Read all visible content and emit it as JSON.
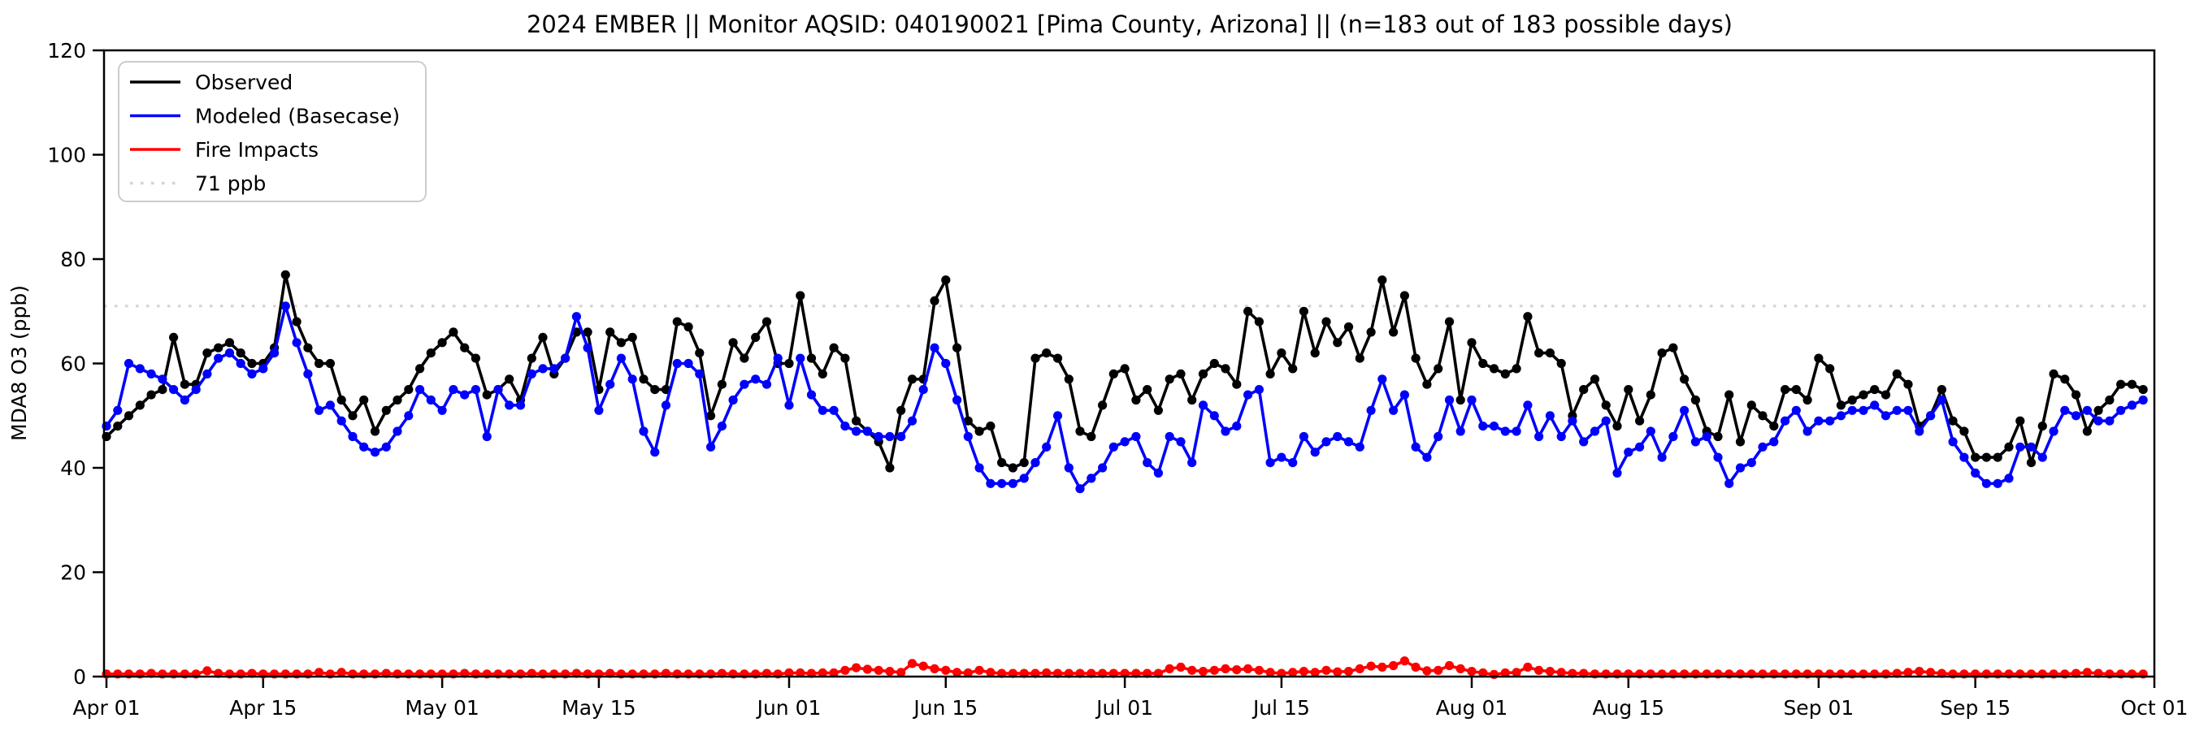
{
  "chart": {
    "title": "2024 EMBER || Monitor AQSID: 040190021 [Pima County, Arizona] || (n=183 out of 183 possible days)"
  },
  "chart_data": {
    "type": "line",
    "title": "2024 EMBER || Monitor AQSID: 040190021 [Pima County, Arizona] || (n=183 out of 183 possible days)",
    "xlabel": "",
    "ylabel": "MDA8 O3 (ppb)",
    "ylim": [
      0,
      120
    ],
    "yticks": [
      0,
      20,
      40,
      60,
      80,
      100,
      120
    ],
    "grid": false,
    "legend_position": "upper left",
    "n_days": 183,
    "x_start_label": "Apr 01",
    "x_end_label": "Oct 01",
    "xticks": [
      {
        "day": 0,
        "label": "Apr 01"
      },
      {
        "day": 14,
        "label": "Apr 15"
      },
      {
        "day": 30,
        "label": "May 01"
      },
      {
        "day": 44,
        "label": "May 15"
      },
      {
        "day": 61,
        "label": "Jun 01"
      },
      {
        "day": 75,
        "label": "Jun 15"
      },
      {
        "day": 91,
        "label": "Jul 01"
      },
      {
        "day": 105,
        "label": "Jul 15"
      },
      {
        "day": 122,
        "label": "Aug 01"
      },
      {
        "day": 136,
        "label": "Aug 15"
      },
      {
        "day": 153,
        "label": "Sep 01"
      },
      {
        "day": 167,
        "label": "Sep 15"
      },
      {
        "day": 183,
        "label": "Oct 01"
      }
    ],
    "threshold": {
      "label": "71 ppb",
      "value": 71,
      "color": "#d3d3d3",
      "style": "dotted"
    },
    "series": [
      {
        "name": "Observed",
        "color": "#000000",
        "values": [
          46,
          48,
          50,
          52,
          54,
          55,
          65,
          56,
          56,
          62,
          63,
          64,
          62,
          60,
          60,
          63,
          77,
          68,
          63,
          60,
          60,
          53,
          50,
          53,
          47,
          51,
          53,
          55,
          59,
          62,
          64,
          66,
          63,
          61,
          54,
          55,
          57,
          53,
          61,
          65,
          58,
          61,
          66,
          66,
          55,
          66,
          64,
          65,
          57,
          55,
          55,
          68,
          67,
          62,
          50,
          56,
          64,
          61,
          65,
          68,
          60,
          60,
          73,
          61,
          58,
          63,
          61,
          49,
          47,
          45,
          40,
          51,
          57,
          57,
          72,
          76,
          63,
          49,
          47,
          48,
          41,
          40,
          41,
          61,
          62,
          61,
          57,
          47,
          46,
          52,
          58,
          59,
          53,
          55,
          51,
          57,
          58,
          53,
          58,
          60,
          59,
          56,
          70,
          68,
          58,
          62,
          59,
          70,
          62,
          68,
          64,
          67,
          61,
          66,
          76,
          66,
          73,
          61,
          56,
          59,
          68,
          53,
          64,
          60,
          59,
          58,
          59,
          69,
          62,
          62,
          60,
          50,
          55,
          57,
          52,
          48,
          55,
          49,
          54,
          62,
          63,
          57,
          53,
          47,
          46,
          54,
          45,
          52,
          50,
          48,
          55,
          55,
          53,
          61,
          59,
          52,
          53,
          54,
          55,
          54,
          58,
          56,
          48,
          50,
          55,
          49,
          47,
          42,
          42,
          42,
          44,
          49,
          41,
          48,
          58,
          57,
          54,
          47,
          51,
          53,
          56,
          56,
          55
        ]
      },
      {
        "name": "Modeled (Basecase)",
        "color": "#0000ff",
        "values": [
          48,
          51,
          60,
          59,
          58,
          57,
          55,
          53,
          55,
          58,
          61,
          62,
          60,
          58,
          59,
          62,
          71,
          64,
          58,
          51,
          52,
          49,
          46,
          44,
          43,
          44,
          47,
          50,
          55,
          53,
          51,
          55,
          54,
          55,
          46,
          55,
          52,
          52,
          58,
          59,
          59,
          61,
          69,
          63,
          51,
          56,
          61,
          57,
          47,
          43,
          52,
          60,
          60,
          58,
          44,
          48,
          53,
          56,
          57,
          56,
          61,
          52,
          61,
          54,
          51,
          51,
          48,
          47,
          47,
          46,
          46,
          46,
          49,
          55,
          63,
          60,
          53,
          46,
          40,
          37,
          37,
          37,
          38,
          41,
          44,
          50,
          40,
          36,
          38,
          40,
          44,
          45,
          46,
          41,
          39,
          46,
          45,
          41,
          52,
          50,
          47,
          48,
          54,
          55,
          41,
          42,
          41,
          46,
          43,
          45,
          46,
          45,
          44,
          51,
          57,
          51,
          54,
          44,
          42,
          46,
          53,
          47,
          53,
          48,
          48,
          47,
          47,
          52,
          46,
          50,
          46,
          49,
          45,
          47,
          49,
          39,
          43,
          44,
          47,
          42,
          46,
          51,
          45,
          46,
          42,
          37,
          40,
          41,
          44,
          45,
          49,
          51,
          47,
          49,
          49,
          50,
          51,
          51,
          52,
          50,
          51,
          51,
          47,
          50,
          53,
          45,
          42,
          39,
          37,
          37,
          38,
          44,
          44,
          42,
          47,
          51,
          50,
          51,
          49,
          49,
          51,
          52,
          53
        ]
      },
      {
        "name": "Fire Impacts",
        "color": "#ff0000",
        "values": [
          0.5,
          0.5,
          0.5,
          0.5,
          0.6,
          0.5,
          0.5,
          0.5,
          0.5,
          1.1,
          0.6,
          0.5,
          0.5,
          0.6,
          0.5,
          0.5,
          0.5,
          0.5,
          0.5,
          0.8,
          0.5,
          0.8,
          0.5,
          0.5,
          0.5,
          0.6,
          0.5,
          0.5,
          0.5,
          0.5,
          0.5,
          0.5,
          0.6,
          0.5,
          0.5,
          0.5,
          0.5,
          0.5,
          0.6,
          0.5,
          0.5,
          0.5,
          0.6,
          0.5,
          0.5,
          0.6,
          0.5,
          0.5,
          0.5,
          0.5,
          0.6,
          0.5,
          0.5,
          0.5,
          0.5,
          0.6,
          0.5,
          0.5,
          0.5,
          0.6,
          0.5,
          0.7,
          0.7,
          0.6,
          0.7,
          0.7,
          1.2,
          1.7,
          1.4,
          1.2,
          1.0,
          0.8,
          2.5,
          2.0,
          1.5,
          1.2,
          0.8,
          0.7,
          1.2,
          0.8,
          0.6,
          0.6,
          0.6,
          0.6,
          0.7,
          0.6,
          0.6,
          0.6,
          0.6,
          0.6,
          0.6,
          0.6,
          0.6,
          0.6,
          0.6,
          1.5,
          1.8,
          1.2,
          1.0,
          1.2,
          1.5,
          1.3,
          1.5,
          1.2,
          0.8,
          0.6,
          0.8,
          1.0,
          0.8,
          1.2,
          0.9,
          1.0,
          1.5,
          2.0,
          1.8,
          2.1,
          3.0,
          1.8,
          1.1,
          1.2,
          2.1,
          1.5,
          1.0,
          0.7,
          0.4,
          0.7,
          0.8,
          1.8,
          1.2,
          1.0,
          0.8,
          0.6,
          0.6,
          0.5,
          0.5,
          0.5,
          0.5,
          0.5,
          0.5,
          0.5,
          0.5,
          0.5,
          0.5,
          0.5,
          0.5,
          0.5,
          0.5,
          0.5,
          0.5,
          0.5,
          0.5,
          0.5,
          0.5,
          0.5,
          0.5,
          0.5,
          0.5,
          0.5,
          0.5,
          0.5,
          0.6,
          0.8,
          1.0,
          0.8,
          0.6,
          0.5,
          0.5,
          0.5,
          0.5,
          0.5,
          0.5,
          0.5,
          0.5,
          0.5,
          0.5,
          0.5,
          0.6,
          0.8,
          0.6,
          0.5,
          0.5,
          0.5,
          0.5
        ]
      }
    ]
  }
}
